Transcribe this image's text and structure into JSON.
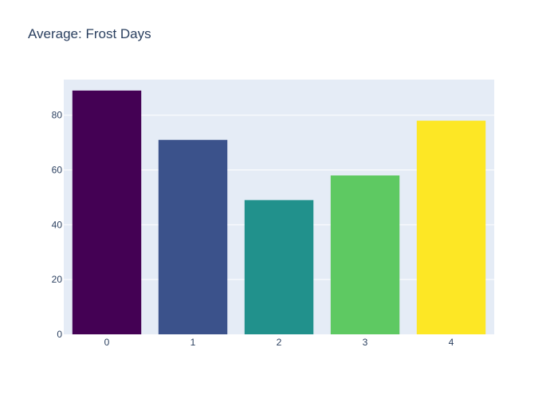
{
  "chart_data": {
    "type": "bar",
    "title": "Average: Frost Days",
    "xlabel": "",
    "ylabel": "",
    "categories": [
      "0",
      "1",
      "2",
      "3",
      "4"
    ],
    "values": [
      89,
      71,
      49,
      58,
      78
    ],
    "bar_colors": [
      "#440154",
      "#3b528b",
      "#21918c",
      "#5ec962",
      "#fde725"
    ],
    "ylim": [
      0,
      93
    ],
    "y_ticks": [
      0,
      20,
      40,
      60,
      80
    ],
    "grid": true,
    "plot_background": "#e5ecf6"
  }
}
